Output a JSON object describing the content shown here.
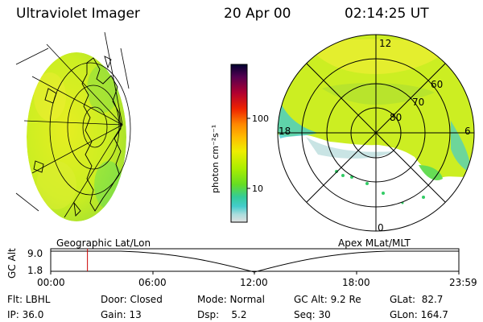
{
  "header": {
    "instrument": "Ultraviolet Imager",
    "date": "20 Apr 00",
    "time": "02:14:25 UT"
  },
  "colorbar": {
    "unit_label": "photon cm⁻²s⁻¹",
    "ticks": [
      "100",
      "10"
    ],
    "colors": [
      "#000030",
      "#330040",
      "#660050",
      "#99003a",
      "#cc0010",
      "#ee2000",
      "#ff6600",
      "#ff9900",
      "#ffcc00",
      "#eeee00",
      "#ccee00",
      "#99ee00",
      "#66dd33",
      "#33cc99",
      "#33cccc",
      "#88dddd",
      "#bbdddd",
      "#dddddd"
    ]
  },
  "geo_globe": {
    "fill_colors": [
      "#ccee22",
      "#ddee33",
      "#aadd22",
      "#88dd44"
    ]
  },
  "polar_plot": {
    "lat_labels": [
      "80",
      "70",
      "60"
    ],
    "mlt_labels": {
      "top": "12",
      "left": "18",
      "right": "6",
      "bottom": "0"
    }
  },
  "timeline": {
    "left_title": "Geographic Lat/Lon",
    "right_title": "Apex MLat/MLT",
    "axis_label": "GC Alt",
    "y_ticks": [
      "9.0",
      "1.8"
    ],
    "x_ticks": [
      "00:00",
      "06:00",
      "12:00",
      "18:00",
      "23:59"
    ],
    "current_time_fraction": 0.09,
    "marker_color": "#cc0000"
  },
  "status": {
    "row1": {
      "flt": "Flt: LBHL",
      "door": "Door: Closed",
      "mode": "Mode: Normal",
      "gc_alt": "GC Alt: 9.2 Re",
      "glat": "GLat:  82.7"
    },
    "row2": {
      "ip": "IP: 36.0",
      "gain": "Gain: 13",
      "dsp": "Dsp:    5.2",
      "seq": "Seq: 30",
      "glon": "GLon: 164.7"
    }
  }
}
